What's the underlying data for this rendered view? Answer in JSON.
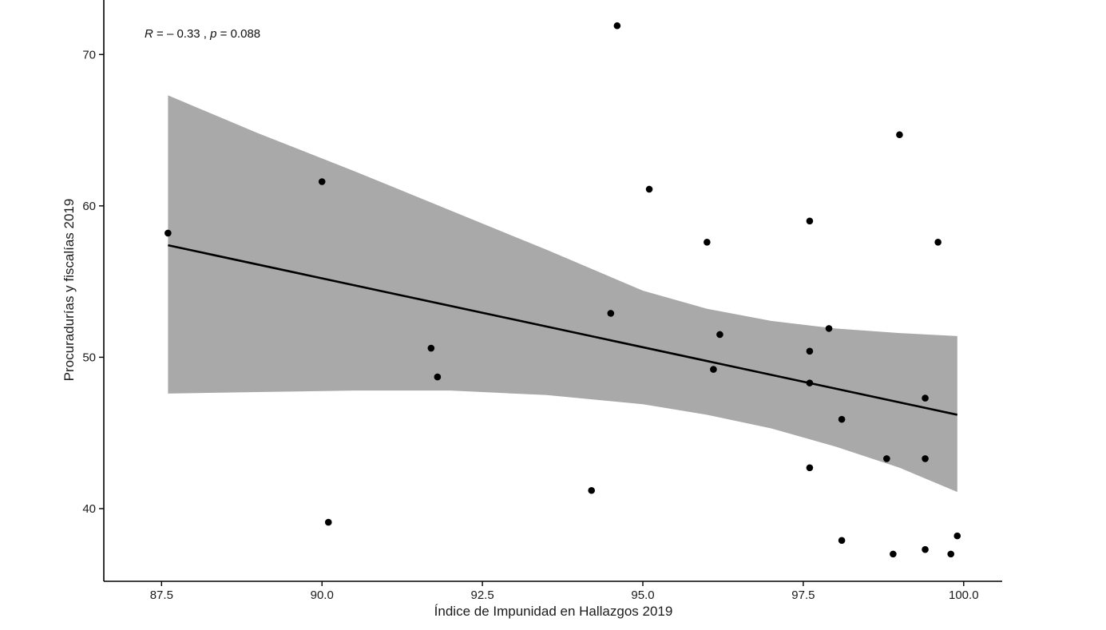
{
  "chart_data": {
    "type": "scatter",
    "title": "",
    "xlabel": "Índice de Impunidad en Hallazgos 2019",
    "ylabel": "Procuradurías y fiscalías 2019",
    "xlim": [
      86.6,
      100.6
    ],
    "ylim": [
      35.2,
      73.6
    ],
    "x_ticks": [
      87.5,
      90.0,
      92.5,
      95.0,
      97.5,
      100.0
    ],
    "x_tick_labels": [
      "87.5",
      "90.0",
      "92.5",
      "95.0",
      "97.5",
      "100.0"
    ],
    "y_ticks": [
      40,
      50,
      60,
      70
    ],
    "y_tick_labels": [
      "40",
      "50",
      "60",
      "70"
    ],
    "grid": false,
    "annotation": {
      "r_symbol": "R",
      "r_text": " = – 0.33 , ",
      "p_symbol": "p",
      "p_text": " = 0.088"
    },
    "points": [
      {
        "x": 87.6,
        "y": 58.2
      },
      {
        "x": 90.0,
        "y": 61.6
      },
      {
        "x": 90.1,
        "y": 39.1
      },
      {
        "x": 91.7,
        "y": 50.6
      },
      {
        "x": 91.8,
        "y": 48.7
      },
      {
        "x": 94.2,
        "y": 41.2
      },
      {
        "x": 94.5,
        "y": 52.9
      },
      {
        "x": 94.6,
        "y": 71.9
      },
      {
        "x": 95.1,
        "y": 61.1
      },
      {
        "x": 96.0,
        "y": 57.6
      },
      {
        "x": 96.1,
        "y": 49.2
      },
      {
        "x": 96.2,
        "y": 51.5
      },
      {
        "x": 97.6,
        "y": 59.0
      },
      {
        "x": 97.6,
        "y": 50.4
      },
      {
        "x": 97.6,
        "y": 48.3
      },
      {
        "x": 97.6,
        "y": 42.7
      },
      {
        "x": 97.9,
        "y": 51.9
      },
      {
        "x": 98.1,
        "y": 45.9
      },
      {
        "x": 98.1,
        "y": 37.9
      },
      {
        "x": 98.8,
        "y": 43.3
      },
      {
        "x": 98.9,
        "y": 37.0
      },
      {
        "x": 99.0,
        "y": 64.7
      },
      {
        "x": 99.4,
        "y": 47.3
      },
      {
        "x": 99.4,
        "y": 43.3
      },
      {
        "x": 99.4,
        "y": 37.3
      },
      {
        "x": 99.6,
        "y": 57.6
      },
      {
        "x": 99.8,
        "y": 37.0
      },
      {
        "x": 99.9,
        "y": 38.2
      }
    ],
    "regression_line": [
      {
        "x": 87.6,
        "y": 57.4
      },
      {
        "x": 99.9,
        "y": 46.2
      }
    ],
    "confidence_band": {
      "x": [
        87.6,
        89.0,
        90.5,
        92.0,
        93.5,
        95.0,
        96.0,
        97.0,
        98.0,
        99.0,
        99.9
      ],
      "upper": [
        67.3,
        64.8,
        62.3,
        59.7,
        57.1,
        54.4,
        53.2,
        52.4,
        51.9,
        51.6,
        51.4
      ],
      "lower": [
        47.6,
        47.7,
        47.8,
        47.8,
        47.5,
        46.9,
        46.2,
        45.3,
        44.1,
        42.7,
        41.1
      ]
    },
    "colors": {
      "points": "#000000",
      "line": "#000000",
      "band": "#a9a9a9",
      "axis": "#000000"
    }
  }
}
